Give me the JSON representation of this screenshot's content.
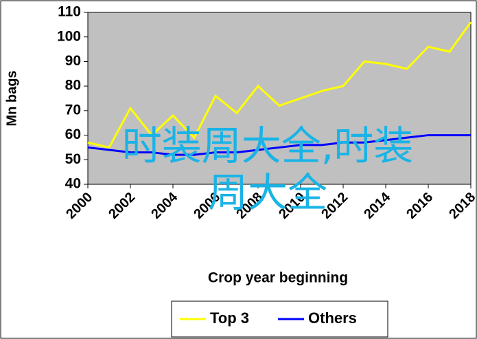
{
  "chart_data": {
    "type": "line",
    "y_label": "Mn bags",
    "x_label": "Crop year beginning",
    "x": [
      2000,
      2001,
      2002,
      2003,
      2004,
      2005,
      2006,
      2007,
      2008,
      2009,
      2010,
      2011,
      2012,
      2013,
      2014,
      2015,
      2016,
      2017,
      2018
    ],
    "series": [
      {
        "name": "Top 3",
        "color": "#ffff00",
        "values": [
          57,
          55,
          71,
          60,
          68,
          59,
          76,
          69,
          80,
          72,
          75,
          78,
          80,
          90,
          89,
          87,
          96,
          94,
          106
        ]
      },
      {
        "name": "Others",
        "color": "#0000ff",
        "values": [
          55,
          54,
          53,
          53,
          52,
          52,
          53,
          53,
          54,
          55,
          56,
          56,
          57,
          57,
          58,
          59,
          60,
          60,
          60
        ]
      }
    ],
    "xlim": [
      2000,
      2018
    ],
    "xticks": [
      2000,
      2002,
      2004,
      2006,
      2008,
      2010,
      2012,
      2014,
      2016,
      2018
    ],
    "ylim": [
      40,
      110
    ],
    "yticks": [
      40,
      50,
      60,
      70,
      80,
      90,
      100,
      110
    ],
    "background": "#c0c0c0",
    "legend": "bottom",
    "annotation": "时装周大全,时装周大全"
  }
}
